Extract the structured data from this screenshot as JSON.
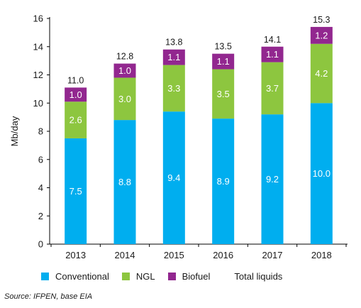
{
  "chart_data": {
    "type": "bar",
    "stacked": true,
    "categories": [
      "2013",
      "2014",
      "2015",
      "2016",
      "2017",
      "2018"
    ],
    "series": [
      {
        "name": "Conventional",
        "color": "#00aeef",
        "values": [
          7.5,
          8.8,
          9.4,
          8.9,
          9.2,
          10.0
        ],
        "labels": [
          "7.5",
          "8.8",
          "9.4",
          "8.9",
          "9.2",
          "10.0"
        ]
      },
      {
        "name": "NGL",
        "color": "#8dc63f",
        "values": [
          2.6,
          3.0,
          3.3,
          3.5,
          3.7,
          4.2
        ],
        "labels": [
          "2.6",
          "3.0",
          "3.3",
          "3.5",
          "3.7",
          "4.2"
        ]
      },
      {
        "name": "Biofuel",
        "color": "#92278f",
        "values": [
          1.0,
          1.0,
          1.1,
          1.1,
          1.1,
          1.2
        ],
        "labels": [
          "1.0",
          "1.0",
          "1.1",
          "1.1",
          "1.1",
          "1.2"
        ]
      }
    ],
    "totals": {
      "name": "Total liquids",
      "values": [
        11.0,
        12.8,
        13.8,
        13.5,
        14.1,
        15.3
      ],
      "labels": [
        "11.0",
        "12.8",
        "13.8",
        "13.5",
        "14.1",
        "15.3"
      ]
    },
    "ylabel": "Mb/day",
    "xlabel": "",
    "ylim": [
      0,
      16
    ],
    "yticks": [
      "0",
      "2",
      "4",
      "6",
      "8",
      "10",
      "12",
      "14",
      "16"
    ],
    "grid": false,
    "legend_position": "bottom"
  },
  "legend": {
    "items": [
      {
        "label": "Conventional",
        "color": "#00aeef"
      },
      {
        "label": "NGL",
        "color": "#8dc63f"
      },
      {
        "label": "Biofuel",
        "color": "#92278f"
      }
    ],
    "total_label": "Total liquids"
  },
  "source": "Source: IFPEN, base EIA"
}
